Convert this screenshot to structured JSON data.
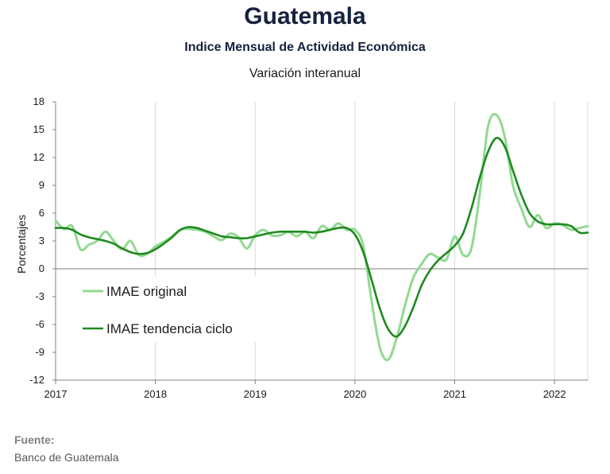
{
  "header": {
    "title": "Guatemala",
    "subtitle": "Indice Mensual de  Actividad Económica",
    "subtitle2": "Variación interanual"
  },
  "source": {
    "label": "Fuente:",
    "value": "Banco de Guatemala"
  },
  "chart_data": {
    "type": "line",
    "title": "",
    "xlabel": "",
    "ylabel": "Porcentajes",
    "xlim": [
      2017,
      2022.333
    ],
    "ylim": [
      -12,
      18
    ],
    "yticks": [
      18,
      15,
      12,
      9,
      6,
      3,
      0,
      -3,
      -6,
      -9,
      -12
    ],
    "xticks": [
      "2017",
      "2018",
      "2019",
      "2020",
      "2021",
      "2022"
    ],
    "grid": "vertical",
    "legend": "left-middle",
    "series": [
      {
        "name": "IMAE original",
        "color": "#92d992",
        "x": [
          2017.0,
          2017.083,
          2017.167,
          2017.25,
          2017.333,
          2017.417,
          2017.5,
          2017.583,
          2017.667,
          2017.75,
          2017.833,
          2017.917,
          2018.0,
          2018.083,
          2018.167,
          2018.25,
          2018.333,
          2018.417,
          2018.5,
          2018.583,
          2018.667,
          2018.75,
          2018.833,
          2018.917,
          2019.0,
          2019.083,
          2019.167,
          2019.25,
          2019.333,
          2019.417,
          2019.5,
          2019.583,
          2019.667,
          2019.75,
          2019.833,
          2019.917,
          2020.0,
          2020.083,
          2020.167,
          2020.25,
          2020.333,
          2020.417,
          2020.5,
          2020.583,
          2020.667,
          2020.75,
          2020.833,
          2020.917,
          2021.0,
          2021.083,
          2021.167,
          2021.25,
          2021.333,
          2021.417,
          2021.5,
          2021.583,
          2021.667,
          2021.75,
          2021.833,
          2021.917,
          2022.0,
          2022.083,
          2022.167,
          2022.25,
          2022.333
        ],
        "values": [
          5.2,
          4.3,
          4.6,
          2.1,
          2.6,
          3.0,
          4.0,
          3.0,
          2.1,
          3.0,
          1.5,
          1.6,
          2.4,
          2.9,
          3.5,
          4.2,
          4.3,
          4.2,
          4.0,
          3.5,
          3.1,
          3.8,
          3.4,
          2.2,
          3.6,
          4.2,
          3.6,
          3.6,
          4.0,
          3.5,
          4.0,
          3.3,
          4.6,
          4.2,
          4.9,
          4.2,
          4.2,
          2.5,
          -3.5,
          -8.5,
          -9.8,
          -7.5,
          -4.0,
          -1.0,
          0.5,
          1.6,
          1.2,
          1.0,
          3.5,
          1.5,
          2.2,
          8.0,
          15.3,
          16.6,
          14.3,
          9.0,
          6.5,
          4.5,
          5.8,
          4.4,
          4.9,
          4.7,
          4.2,
          4.4,
          4.6
        ]
      },
      {
        "name": "IMAE tendencia ciclo",
        "color": "#1e8a1e",
        "x": [
          2017.0,
          2017.083,
          2017.167,
          2017.25,
          2017.333,
          2017.417,
          2017.5,
          2017.583,
          2017.667,
          2017.75,
          2017.833,
          2017.917,
          2018.0,
          2018.083,
          2018.167,
          2018.25,
          2018.333,
          2018.417,
          2018.5,
          2018.583,
          2018.667,
          2018.75,
          2018.833,
          2018.917,
          2019.0,
          2019.083,
          2019.167,
          2019.25,
          2019.333,
          2019.417,
          2019.5,
          2019.583,
          2019.667,
          2019.75,
          2019.833,
          2019.917,
          2020.0,
          2020.083,
          2020.167,
          2020.25,
          2020.333,
          2020.417,
          2020.5,
          2020.583,
          2020.667,
          2020.75,
          2020.833,
          2020.917,
          2021.0,
          2021.083,
          2021.167,
          2021.25,
          2021.333,
          2021.417,
          2021.5,
          2021.583,
          2021.667,
          2021.75,
          2021.833,
          2021.917,
          2022.0,
          2022.083,
          2022.167,
          2022.25,
          2022.333
        ],
        "values": [
          4.4,
          4.4,
          4.2,
          3.7,
          3.4,
          3.2,
          3.0,
          2.7,
          2.2,
          1.8,
          1.6,
          1.7,
          2.1,
          2.7,
          3.4,
          4.2,
          4.5,
          4.4,
          4.1,
          3.8,
          3.5,
          3.4,
          3.3,
          3.3,
          3.5,
          3.7,
          3.9,
          4.0,
          4.0,
          4.0,
          4.0,
          3.9,
          4.0,
          4.2,
          4.4,
          4.4,
          3.7,
          1.8,
          -1.2,
          -4.3,
          -6.5,
          -7.3,
          -6.2,
          -4.2,
          -1.8,
          -0.2,
          0.9,
          1.7,
          2.5,
          3.8,
          6.5,
          9.8,
          12.6,
          14.1,
          13.2,
          10.6,
          8.0,
          6.0,
          5.1,
          4.8,
          4.8,
          4.8,
          4.6,
          3.9,
          3.9
        ]
      }
    ]
  }
}
